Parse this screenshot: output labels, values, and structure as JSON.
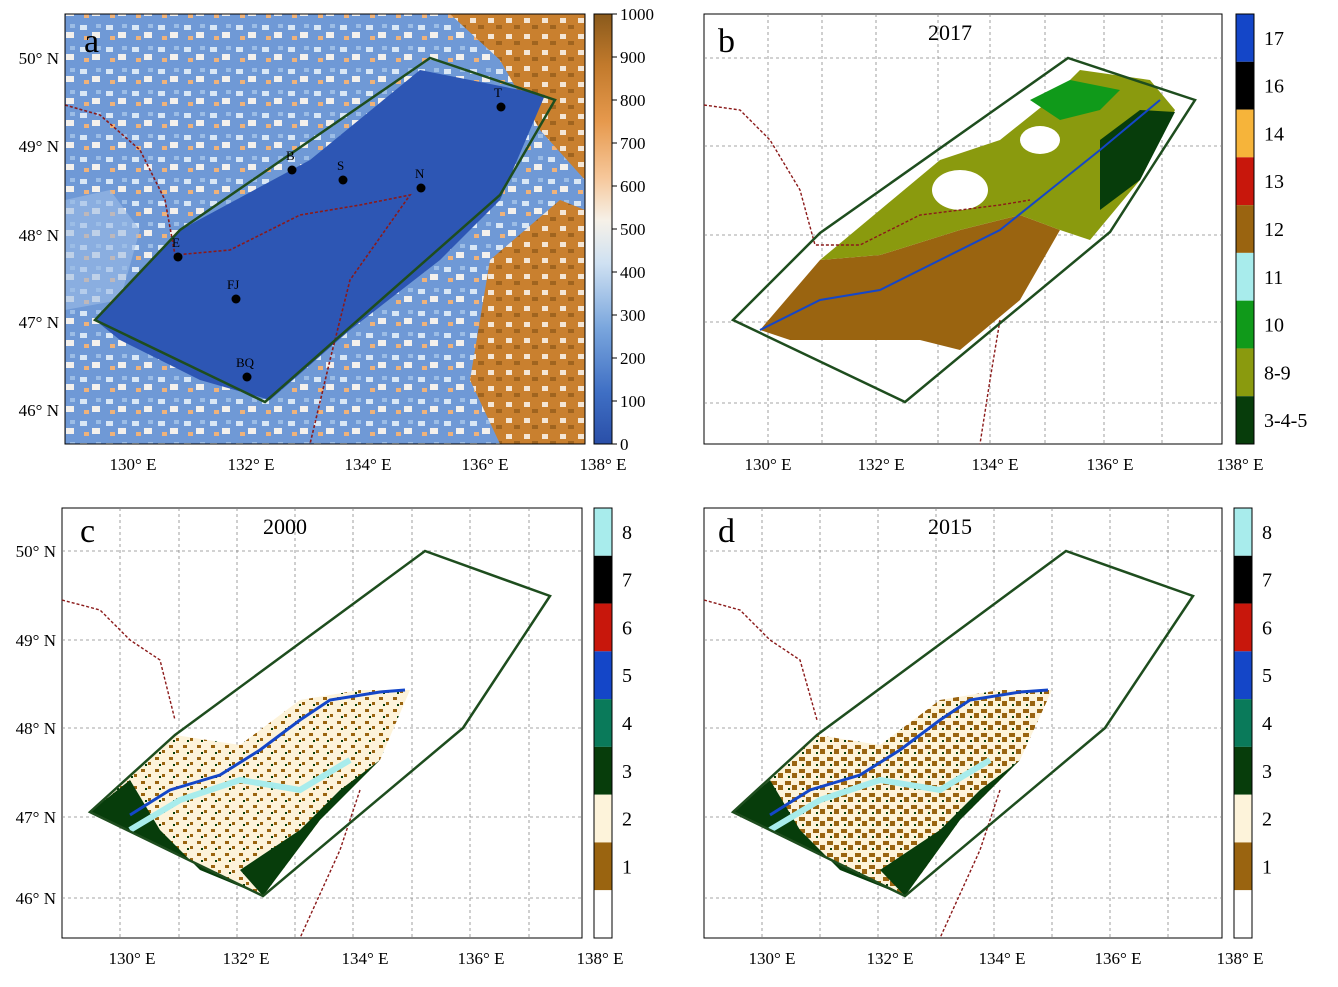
{
  "panels": [
    {
      "letter": "a",
      "year": "",
      "lat_labels": [
        "50° N",
        "49° N",
        "48° N",
        "47° N",
        "46° N"
      ],
      "lon_labels": [
        "130° E",
        "132° E",
        "134° E",
        "136° E",
        "138° E"
      ],
      "colorbar": {
        "type": "continuous",
        "ticks": [
          "1000",
          "900",
          "800",
          "700",
          "600",
          "500",
          "400",
          "300",
          "200",
          "100",
          "0"
        ]
      },
      "stations": [
        "T",
        "B",
        "S",
        "N",
        "E",
        "FJ",
        "BQ"
      ]
    },
    {
      "letter": "b",
      "year": "2017",
      "lat_labels": [],
      "lon_labels": [
        "130° E",
        "132° E",
        "134° E",
        "136° E",
        "138° E"
      ],
      "colorbar": {
        "type": "categorical",
        "classes": [
          {
            "label": "17",
            "color": "#1446c8"
          },
          {
            "label": "16",
            "color": "#000000"
          },
          {
            "label": "14",
            "color": "#f6b43a"
          },
          {
            "label": "13",
            "color": "#c8170c"
          },
          {
            "label": "12",
            "color": "#9a6410"
          },
          {
            "label": "11",
            "color": "#a8ecec"
          },
          {
            "label": "10",
            "color": "#109a1a"
          },
          {
            "label": "8-9",
            "color": "#8a9a0e"
          },
          {
            "label": "3-4-5",
            "color": "#073d0b"
          }
        ]
      }
    },
    {
      "letter": "c",
      "year": "2000",
      "lat_labels": [
        "50° N",
        "49° N",
        "48° N",
        "47° N",
        "46° N"
      ],
      "lon_labels": [
        "130° E",
        "132° E",
        "134° E",
        "136° E",
        "138° E"
      ],
      "colorbar": {
        "type": "categorical",
        "classes": [
          {
            "label": "8",
            "color": "#a8ecec"
          },
          {
            "label": "7",
            "color": "#000000"
          },
          {
            "label": "6",
            "color": "#c8170c"
          },
          {
            "label": "5",
            "color": "#1446c8"
          },
          {
            "label": "4",
            "color": "#0a7a5a"
          },
          {
            "label": "3",
            "color": "#073d0b"
          },
          {
            "label": "2",
            "color": "#fdf3da"
          },
          {
            "label": "1",
            "color": "#9a6410"
          },
          {
            "label": "",
            "color": "#ffffff"
          }
        ]
      }
    },
    {
      "letter": "d",
      "year": "2015",
      "lat_labels": [],
      "lon_labels": [
        "130° E",
        "132° E",
        "134° E",
        "136° E",
        "138° E"
      ],
      "colorbar": {
        "type": "categorical",
        "classes": [
          {
            "label": "8",
            "color": "#a8ecec"
          },
          {
            "label": "7",
            "color": "#000000"
          },
          {
            "label": "6",
            "color": "#c8170c"
          },
          {
            "label": "5",
            "color": "#1446c8"
          },
          {
            "label": "4",
            "color": "#0a7a5a"
          },
          {
            "label": "3",
            "color": "#073d0b"
          },
          {
            "label": "2",
            "color": "#fdf3da"
          },
          {
            "label": "1",
            "color": "#9a6410"
          },
          {
            "label": "",
            "color": "#ffffff"
          }
        ]
      }
    }
  ]
}
